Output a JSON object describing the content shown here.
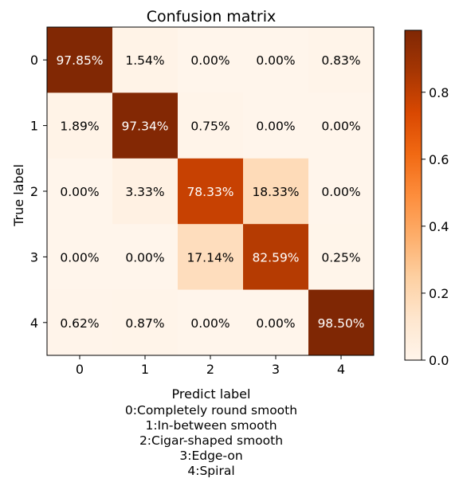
{
  "chart_data": {
    "type": "heatmap",
    "title": "Confusion matrix",
    "xlabel": "Predict label",
    "xlabel_lines": [
      "0:Completely round smooth",
      "1:In-between smooth",
      "2:Cigar-shaped smooth",
      "3:Edge-on",
      "4:Spiral"
    ],
    "ylabel": "True label",
    "x_categories": [
      "0",
      "1",
      "2",
      "3",
      "4"
    ],
    "y_categories": [
      "0",
      "1",
      "2",
      "3",
      "4"
    ],
    "values": [
      [
        0.9785,
        0.0154,
        0.0,
        0.0,
        0.0083
      ],
      [
        0.0189,
        0.9734,
        0.0075,
        0.0,
        0.0
      ],
      [
        0.0,
        0.0333,
        0.7833,
        0.1833,
        0.0
      ],
      [
        0.0,
        0.0,
        0.1714,
        0.8259,
        0.0025
      ],
      [
        0.0062,
        0.0087,
        0.0,
        0.0,
        0.985
      ]
    ],
    "cell_labels": [
      [
        "97.85%",
        "1.54%",
        "0.00%",
        "0.00%",
        "0.83%"
      ],
      [
        "1.89%",
        "97.34%",
        "0.75%",
        "0.00%",
        "0.00%"
      ],
      [
        "0.00%",
        "3.33%",
        "78.33%",
        "18.33%",
        "0.00%"
      ],
      [
        "0.00%",
        "0.00%",
        "17.14%",
        "82.59%",
        "0.25%"
      ],
      [
        "0.62%",
        "0.87%",
        "0.00%",
        "0.00%",
        "98.50%"
      ]
    ],
    "colormap": "Oranges",
    "colormap_stops": [
      "#fff5eb",
      "#fee6ce",
      "#fdd0a2",
      "#fdae6b",
      "#fd8d3c",
      "#f16913",
      "#d94801",
      "#a63603",
      "#7f2704"
    ],
    "colorbar": {
      "range": [
        0,
        0.985
      ],
      "ticks": [
        0.0,
        0.2,
        0.4,
        0.6,
        0.8
      ],
      "tick_labels": [
        "0.0",
        "0.2",
        "0.4",
        "0.6",
        "0.8"
      ]
    },
    "grid": false
  }
}
